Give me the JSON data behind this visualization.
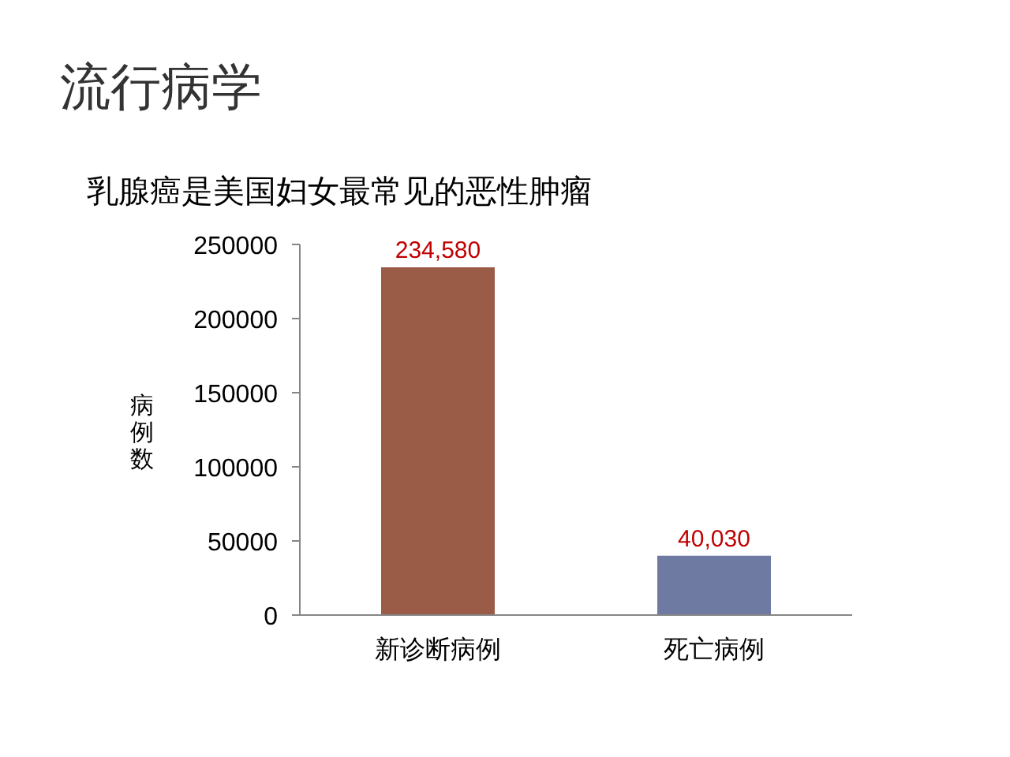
{
  "chart_data": {
    "type": "bar",
    "title": "流行病学",
    "subtitle": "乳腺癌是美国妇女最常见的恶性肿瘤",
    "ylabel": "病例数",
    "categories": [
      "新诊断病例",
      "死亡病例"
    ],
    "values": [
      234580,
      40030
    ],
    "colors": [
      "#9a5b47",
      "#6e7aa2"
    ],
    "value_labels": [
      "234,580",
      "40,030"
    ],
    "ylim": [
      0,
      250000
    ],
    "yticks": [
      0,
      50000,
      100000,
      150000,
      200000,
      250000
    ],
    "grid": false
  }
}
